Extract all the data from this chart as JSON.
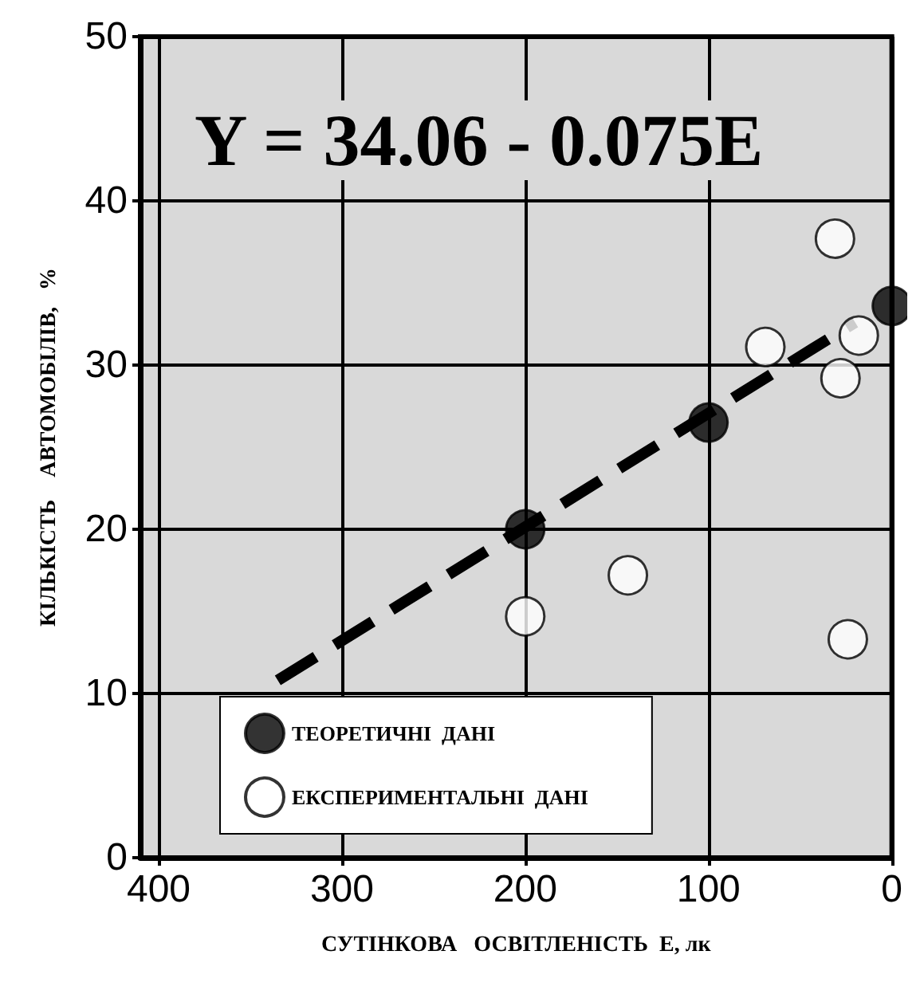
{
  "chart_data": {
    "type": "scatter",
    "xlabel": "СУТІНКОВА   ОСВІТЛЕНІСТЬ  Е, лк",
    "ylabel": "КІЛЬКІСТЬ    АВТОМОБІЛІВ,   %",
    "annotations": [
      "Y = 34.06 - 0.075E"
    ],
    "xlim": [
      410,
      0
    ],
    "xticks": [
      400,
      300,
      200,
      100,
      0
    ],
    "ylim": [
      0,
      50
    ],
    "yticks": [
      0,
      10,
      20,
      30,
      40,
      50
    ],
    "grid": true,
    "legend": "bottom left",
    "marker": "circle",
    "series": [
      {
        "name": "ТЕОРЕТИЧНІ  ДАНІ",
        "color": "#000000",
        "x": [
          200,
          100,
          0
        ],
        "values": [
          20,
          26.5,
          33.6
        ]
      },
      {
        "name": "ЕКСПЕРИМЕНТАЛЬНІ  ДАНІ",
        "color": "#ffffff",
        "x": [
          200,
          144,
          69,
          31,
          28,
          18,
          24
        ],
        "values": [
          14.7,
          17.2,
          31.1,
          37.7,
          29.2,
          31.8,
          13.3
        ]
      },
      {
        "type": "line",
        "color": "#000000",
        "line_style": "dashed",
        "marker": "none",
        "x": [
          335,
          20
        ],
        "values": [
          10.8,
          32.6
        ]
      }
    ]
  }
}
